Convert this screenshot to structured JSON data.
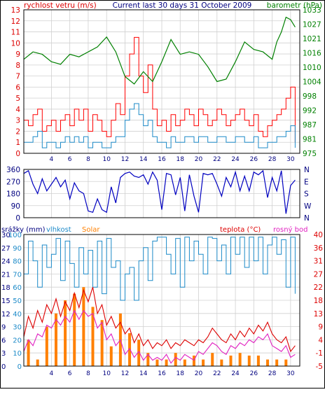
{
  "chart_data": [
    {
      "type": "line",
      "title": "Current last 30 days 31 October 2009",
      "left_axis_label": "rychlost vetru (m/s)",
      "right_axis_label": "barometr (hPa)",
      "x_ticks": [
        "4",
        "6",
        "8",
        "10",
        "12",
        "14",
        "16",
        "18",
        "20",
        "22",
        "24",
        "26",
        "28",
        "30"
      ],
      "x_range": [
        1,
        31
      ],
      "y_left_ticks": [
        "0",
        "1",
        "2",
        "3",
        "4",
        "5",
        "6",
        "7",
        "8",
        "9",
        "10",
        "11",
        "12",
        "13"
      ],
      "y_left_range": [
        0,
        13
      ],
      "y_right_ticks": [
        "975",
        "981",
        "987",
        "992",
        "998",
        "1004",
        "1010",
        "1016",
        "1021",
        "1027",
        "1033"
      ],
      "y_right_range": [
        975,
        1033
      ],
      "grid": true,
      "colors": {
        "gust": "#ff0000",
        "wind_avg": "#1c8ac8",
        "barometer": "#008000"
      },
      "series": [
        {
          "key": "gust",
          "x": [
            1,
            1.5,
            2,
            2.5,
            3,
            3.5,
            4,
            4.5,
            5,
            5.5,
            6,
            6.5,
            7,
            7.5,
            8,
            8.5,
            9,
            9.5,
            10,
            10.5,
            11,
            11.5,
            12,
            12.5,
            13,
            13.5,
            14,
            14.5,
            15,
            15.5,
            16,
            16.5,
            17,
            17.5,
            18,
            18.5,
            19,
            19.5,
            20,
            20.5,
            21,
            21.5,
            22,
            22.5,
            23,
            23.5,
            24,
            24.5,
            25,
            25.5,
            26,
            26.5,
            27,
            27.5,
            28,
            28.5,
            29,
            29.5,
            30,
            30.5
          ],
          "values": [
            3,
            2.5,
            3.5,
            4,
            2,
            2.5,
            3,
            2,
            3,
            3.5,
            2.5,
            4,
            3,
            4,
            2,
            3.5,
            3,
            2,
            1.5,
            3,
            4.5,
            3.5,
            7,
            9,
            10.5,
            7,
            5.5,
            8,
            4,
            2.5,
            3,
            2,
            3.5,
            2.5,
            3,
            4,
            3.5,
            2.5,
            4,
            3.5,
            2.5,
            3,
            4,
            3.5,
            2.5,
            3,
            3.5,
            4,
            3,
            2.5,
            3.5,
            2,
            1.5,
            2.5,
            3,
            3.5,
            4,
            5,
            6,
            1
          ]
        },
        {
          "key": "wind_avg",
          "x": [
            1,
            1.5,
            2,
            2.5,
            3,
            3.5,
            4,
            4.5,
            5,
            5.5,
            6,
            6.5,
            7,
            7.5,
            8,
            8.5,
            9,
            9.5,
            10,
            10.5,
            11,
            11.5,
            12,
            12.5,
            13,
            13.5,
            14,
            14.5,
            15,
            15.5,
            16,
            16.5,
            17,
            17.5,
            18,
            18.5,
            19,
            19.5,
            20,
            20.5,
            21,
            21.5,
            22,
            22.5,
            23,
            23.5,
            24,
            24.5,
            25,
            25.5,
            26,
            26.5,
            27,
            27.5,
            28,
            28.5,
            29,
            29.5,
            30,
            30.5
          ],
          "values": [
            1,
            1,
            1.5,
            2,
            0.5,
            1,
            1,
            0.5,
            1,
            1.5,
            1,
            1.5,
            1,
            1.5,
            0.5,
            1,
            1,
            0.5,
            0.5,
            1,
            1.5,
            1.5,
            3,
            4,
            4.5,
            3.5,
            2.5,
            3,
            1.5,
            1,
            1,
            0.5,
            1.5,
            1,
            1,
            1.5,
            1.5,
            1,
            1.5,
            1.5,
            1,
            1,
            1.5,
            1.5,
            1,
            1,
            1.5,
            1.5,
            1,
            1,
            1.5,
            0.5,
            0.5,
            1,
            1,
            1.5,
            1.5,
            2,
            2.5,
            0.5
          ]
        },
        {
          "key": "barometer",
          "x": [
            1,
            2,
            3,
            4,
            5,
            6,
            7,
            8,
            9,
            10,
            11,
            12,
            13,
            14,
            15,
            16,
            17,
            18,
            19,
            20,
            21,
            22,
            23,
            24,
            25,
            26,
            27,
            28,
            28.5,
            29,
            29.5,
            30,
            30.5
          ],
          "values": [
            1013,
            1016,
            1015,
            1012,
            1011,
            1015,
            1014,
            1016,
            1018,
            1022,
            1016,
            1006,
            1003,
            1008,
            1004,
            1012,
            1021,
            1015,
            1016,
            1015,
            1010,
            1004,
            1005,
            1012,
            1020,
            1017,
            1016,
            1013,
            1020,
            1024,
            1030,
            1029,
            1026
          ]
        }
      ]
    },
    {
      "type": "line",
      "title": "",
      "x_range": [
        1,
        31
      ],
      "y_left_ticks": [
        "0",
        "90",
        "180",
        "270",
        "360"
      ],
      "y_left_range": [
        0,
        360
      ],
      "y_right_ticks": [
        "N",
        "E",
        "S",
        "W",
        "N"
      ],
      "grid": true,
      "colors": {
        "direction": "#0000c0"
      },
      "series": [
        {
          "key": "direction",
          "x": [
            1,
            1.5,
            2,
            2.5,
            3,
            3.5,
            4,
            4.5,
            5,
            5.5,
            6,
            6.5,
            7,
            7.5,
            8,
            8.5,
            9,
            9.5,
            10,
            10.5,
            11,
            11.5,
            12,
            12.5,
            13,
            13.5,
            14,
            14.5,
            15,
            15.5,
            16,
            16.5,
            17,
            17.5,
            18,
            18.5,
            19,
            19.5,
            20,
            20.5,
            21,
            21.5,
            22,
            22.5,
            23,
            23.5,
            24,
            24.5,
            25,
            25.5,
            26,
            26.5,
            27,
            27.5,
            28,
            28.5,
            29,
            29.5,
            30,
            30.5
          ],
          "values": [
            330,
            350,
            250,
            180,
            290,
            200,
            250,
            300,
            230,
            280,
            140,
            260,
            200,
            180,
            50,
            40,
            140,
            60,
            40,
            230,
            110,
            300,
            330,
            340,
            310,
            300,
            320,
            250,
            340,
            280,
            60,
            330,
            320,
            170,
            300,
            50,
            320,
            160,
            40,
            330,
            320,
            330,
            250,
            160,
            300,
            230,
            340,
            200,
            310,
            200,
            340,
            320,
            350,
            150,
            300,
            200,
            350,
            30,
            240,
            280
          ]
        }
      ]
    },
    {
      "type": "line",
      "title": "",
      "labels": {
        "rain": "srážky (mm)",
        "humidity": "vlhkost",
        "solar": "Solar",
        "temperature": "teplota (°C)",
        "dew_point": "rosný bod"
      },
      "x_ticks": [
        "4",
        "6",
        "8",
        "10",
        "12",
        "14",
        "16",
        "18",
        "20",
        "22",
        "24",
        "26",
        "28",
        "30"
      ],
      "x_range": [
        1,
        31
      ],
      "y_rain_ticks": [
        "0",
        "3",
        "6",
        "9",
        "12",
        "15",
        "18",
        "21",
        "24",
        "27",
        "30"
      ],
      "y_rain_range": [
        0,
        30
      ],
      "y_humidity_ticks": [
        "0",
        "10",
        "20",
        "30",
        "40",
        "50",
        "60",
        "70",
        "80",
        "90",
        "100"
      ],
      "y_humidity_range": [
        0,
        100
      ],
      "y_temperature_ticks": [
        "-5",
        "-1",
        "4",
        "9",
        "13",
        "18",
        "22",
        "27",
        "31",
        "36",
        "40"
      ],
      "y_temperature_range": [
        -5,
        40
      ],
      "grid": true,
      "colors": {
        "rain": "#000080",
        "humidity": "#1c8ac8",
        "solar": "#ff8000",
        "temperature": "#dd0000",
        "dew_point": "#e020c0"
      },
      "series": [
        {
          "key": "humidity",
          "x": [
            1,
            1.5,
            2,
            2.5,
            3,
            3.5,
            4,
            4.5,
            5,
            5.5,
            6,
            6.5,
            7,
            7.5,
            8,
            8.5,
            9,
            9.5,
            10,
            10.5,
            11,
            11.5,
            12,
            12.5,
            13,
            13.5,
            14,
            14.5,
            15,
            15.5,
            16,
            16.5,
            17,
            17.5,
            18,
            18.5,
            19,
            19.5,
            20,
            20.5,
            21,
            21.5,
            22,
            22.5,
            23,
            23.5,
            24,
            24.5,
            25,
            25.5,
            26,
            26.5,
            27,
            27.5,
            28,
            28.5,
            29,
            29.5,
            30,
            30.5
          ],
          "values": [
            70,
            95,
            80,
            60,
            92,
            75,
            85,
            97,
            65,
            95,
            78,
            60,
            90,
            70,
            88,
            60,
            95,
            55,
            97,
            75,
            80,
            50,
            70,
            75,
            50,
            80,
            90,
            65,
            95,
            98,
            98,
            85,
            70,
            97,
            60,
            98,
            80,
            95,
            85,
            70,
            98,
            97,
            80,
            92,
            70,
            98,
            85,
            98,
            75,
            98,
            80,
            98,
            70,
            92,
            98,
            85,
            96,
            60,
            98,
            55
          ]
        },
        {
          "key": "temperature",
          "x": [
            1,
            1.5,
            2,
            2.5,
            3,
            3.5,
            4,
            4.5,
            5,
            5.5,
            6,
            6.5,
            7,
            7.5,
            8,
            8.5,
            9,
            9.5,
            10,
            10.5,
            11,
            11.5,
            12,
            12.5,
            13,
            13.5,
            14,
            14.5,
            15,
            15.5,
            16,
            16.5,
            17,
            17.5,
            18,
            18.5,
            19,
            19.5,
            20,
            20.5,
            21,
            21.5,
            22,
            22.5,
            23,
            23.5,
            24,
            24.5,
            25,
            25.5,
            26,
            26.5,
            27,
            27.5,
            28,
            28.5,
            29,
            29.5,
            30,
            30.5
          ],
          "values": [
            5,
            12,
            8,
            14,
            10,
            16,
            13,
            18,
            12,
            17,
            14,
            20,
            15,
            21,
            17,
            22,
            13,
            16,
            9,
            12,
            8,
            10,
            6,
            8,
            3,
            6,
            2,
            4,
            1,
            3,
            2,
            4,
            1,
            3,
            2,
            4,
            3,
            2,
            4,
            3,
            5,
            8,
            6,
            4,
            3,
            6,
            4,
            7,
            5,
            8,
            6,
            9,
            7,
            10,
            6,
            4,
            3,
            5,
            0,
            2
          ]
        },
        {
          "key": "dew_point",
          "x": [
            1,
            1.5,
            2,
            2.5,
            3,
            3.5,
            4,
            4.5,
            5,
            5.5,
            6,
            6.5,
            7,
            7.5,
            8,
            8.5,
            9,
            9.5,
            10,
            10.5,
            11,
            11.5,
            12,
            12.5,
            13,
            13.5,
            14,
            14.5,
            15,
            15.5,
            16,
            16.5,
            17,
            17.5,
            18,
            18.5,
            19,
            19.5,
            20,
            20.5,
            21,
            21.5,
            22,
            22.5,
            23,
            23.5,
            24,
            24.5,
            25,
            25.5,
            26,
            26.5,
            27,
            27.5,
            28,
            28.5,
            29,
            29.5,
            30,
            30.5
          ],
          "values": [
            0,
            4,
            2,
            6,
            5,
            9,
            8,
            11,
            9,
            12,
            10,
            14,
            11,
            14,
            12,
            13,
            8,
            10,
            4,
            6,
            2,
            4,
            -1,
            1,
            -2,
            0,
            -3,
            -1,
            -3,
            -2,
            -3,
            -1,
            -4,
            -2,
            -3,
            -1,
            -2,
            -3,
            0,
            -1,
            1,
            3,
            2,
            0,
            -1,
            2,
            1,
            3,
            2,
            4,
            3,
            5,
            4,
            6,
            2,
            1,
            0,
            2,
            -2,
            -1
          ]
        },
        {
          "key": "rain",
          "x": [
            1,
            2,
            3,
            4,
            5,
            6,
            7,
            8,
            9,
            10,
            11,
            12,
            13,
            14,
            15,
            16,
            17,
            18,
            19,
            20,
            21,
            22,
            23,
            24,
            25,
            26,
            27,
            28,
            29,
            30,
            30.5
          ],
          "values": [
            0,
            0,
            0,
            0,
            0,
            0,
            0,
            0,
            0,
            0,
            0,
            0,
            0,
            0,
            0,
            0,
            0,
            0,
            0,
            0,
            0,
            0,
            0,
            0,
            0,
            0,
            0,
            0,
            0,
            0,
            0
          ]
        },
        {
          "key": "solar",
          "x": [
            1.5,
            2.5,
            3.5,
            4.5,
            5.5,
            6.5,
            7.5,
            8.5,
            9.5,
            10.5,
            11.5,
            12.5,
            13.5,
            14.5,
            15.5,
            16.5,
            17.5,
            18.5,
            19.5,
            20.5,
            21.5,
            22.5,
            23.5,
            24.5,
            25.5,
            26.5,
            27.5,
            28.5,
            29.5
          ],
          "values": [
            20,
            5,
            30,
            40,
            50,
            55,
            60,
            45,
            35,
            15,
            40,
            25,
            20,
            10,
            5,
            5,
            10,
            5,
            8,
            5,
            10,
            5,
            8,
            10,
            8,
            8,
            5,
            5,
            5
          ]
        }
      ]
    }
  ]
}
